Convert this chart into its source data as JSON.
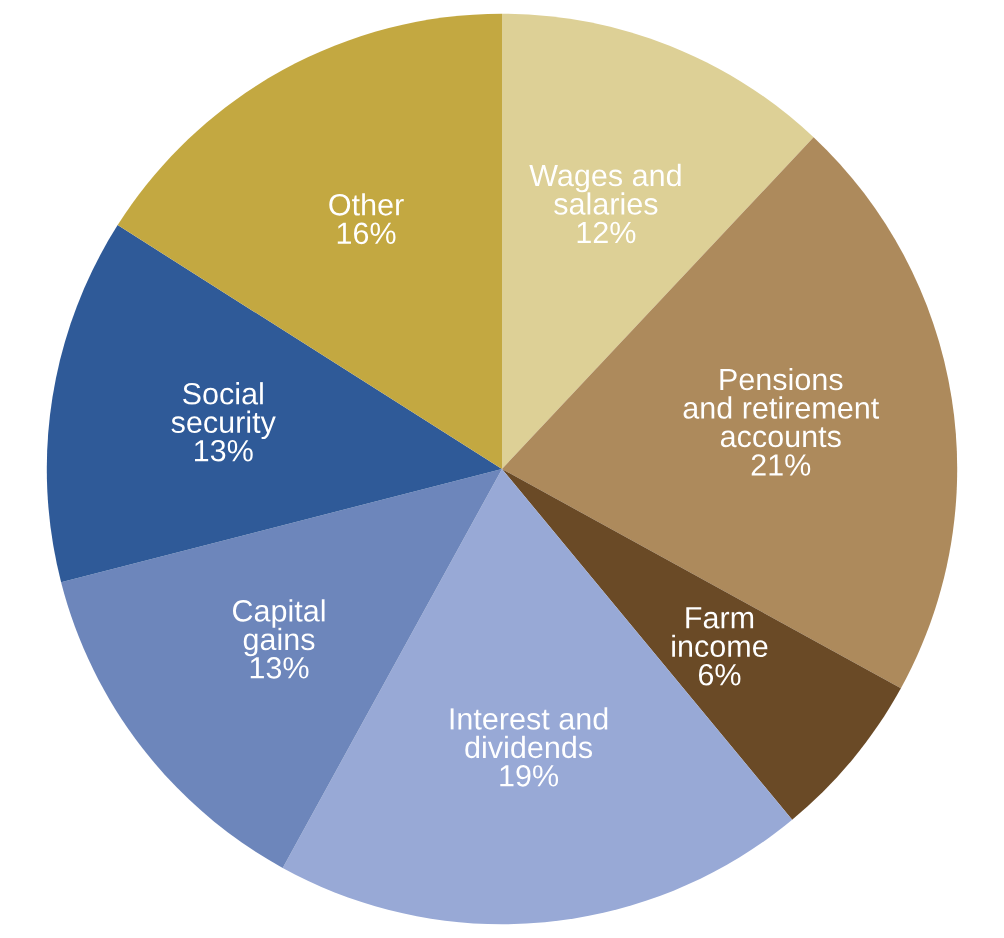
{
  "chart_data": {
    "type": "pie",
    "categories": [
      "Wages and\nsalaries",
      "Pensions\nand retirement\naccounts",
      "Farm\nincome",
      "Interest and\ndividends",
      "Capital\ngains",
      "Social\nsecurity",
      "Other"
    ],
    "values": [
      12,
      21,
      6,
      19,
      13,
      13,
      16
    ],
    "colors": [
      "#ddd096",
      "#ad8a5c",
      "#6a4a26",
      "#98a9d6",
      "#6d86bb",
      "#2f5a98",
      "#c3a841"
    ],
    "value_labels": [
      "12%",
      "21%",
      "6%",
      "19%",
      "13%",
      "13%",
      "16%"
    ]
  }
}
